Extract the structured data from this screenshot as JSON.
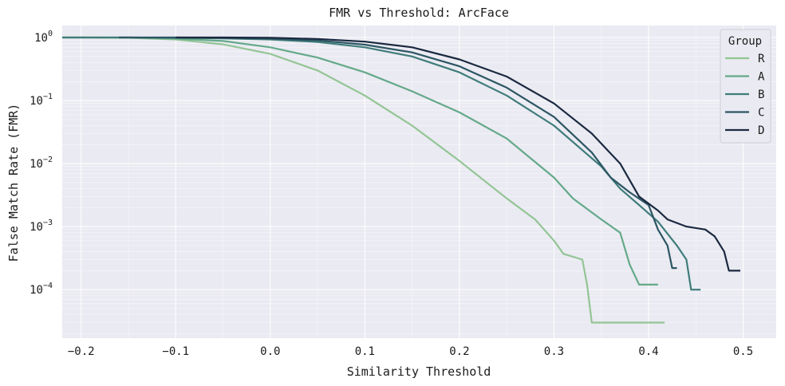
{
  "chart_data": {
    "type": "line",
    "title": "FMR vs Threshold: ArcFace",
    "xlabel": "Similarity Threshold",
    "ylabel": "False Match Rate (FMR)",
    "xlim": [
      -0.22,
      0.535
    ],
    "ylim": [
      1.7e-05,
      1.55
    ],
    "yscale": "log",
    "grid": true,
    "x_ticks": [
      -0.2,
      -0.1,
      0.0,
      0.1,
      0.2,
      0.3,
      0.4,
      0.5
    ],
    "x_tick_labels": [
      "−0.2",
      "−0.1",
      "0.0",
      "0.1",
      "0.2",
      "0.3",
      "0.4",
      "0.5"
    ],
    "y_ticks": [
      {
        "value": 1,
        "base": "10",
        "exp": "0"
      },
      {
        "value": 0.1,
        "base": "10",
        "exp": "−1"
      },
      {
        "value": 0.01,
        "base": "10",
        "exp": "−2"
      },
      {
        "value": 0.001,
        "base": "10",
        "exp": "−3"
      },
      {
        "value": 0.0001,
        "base": "10",
        "exp": "−4"
      }
    ],
    "legend": {
      "title": "Group",
      "placement": "top-right"
    },
    "series": [
      {
        "name": "R",
        "color": "#93c595",
        "points": [
          [
            -0.22,
            1
          ],
          [
            -0.2,
            1
          ],
          [
            -0.15,
            0.99
          ],
          [
            -0.1,
            0.93
          ],
          [
            -0.05,
            0.78
          ],
          [
            0,
            0.55
          ],
          [
            0.05,
            0.3
          ],
          [
            0.1,
            0.12
          ],
          [
            0.15,
            0.04
          ],
          [
            0.2,
            0.011
          ],
          [
            0.25,
            0.0028
          ],
          [
            0.28,
            0.0013
          ],
          [
            0.3,
            0.0006
          ],
          [
            0.31,
            0.00037
          ],
          [
            0.33,
            0.0003
          ],
          [
            0.335,
            0.00012
          ],
          [
            0.34,
            3e-05
          ],
          [
            0.417,
            3e-05
          ]
        ]
      },
      {
        "name": "A",
        "color": "#64a98a",
        "points": [
          [
            -0.22,
            1
          ],
          [
            -0.15,
            1
          ],
          [
            -0.1,
            0.96
          ],
          [
            -0.05,
            0.88
          ],
          [
            0,
            0.7
          ],
          [
            0.05,
            0.48
          ],
          [
            0.1,
            0.28
          ],
          [
            0.15,
            0.14
          ],
          [
            0.2,
            0.065
          ],
          [
            0.25,
            0.025
          ],
          [
            0.3,
            0.006
          ],
          [
            0.32,
            0.0028
          ],
          [
            0.35,
            0.0013
          ],
          [
            0.37,
            0.0008
          ],
          [
            0.38,
            0.00025
          ],
          [
            0.39,
            0.00012
          ],
          [
            0.41,
            0.00012
          ]
        ]
      },
      {
        "name": "B",
        "color": "#3f7c7a",
        "points": [
          [
            -0.22,
            1
          ],
          [
            -0.15,
            1
          ],
          [
            -0.1,
            0.99
          ],
          [
            -0.05,
            0.97
          ],
          [
            0,
            0.93
          ],
          [
            0.05,
            0.85
          ],
          [
            0.1,
            0.7
          ],
          [
            0.15,
            0.5
          ],
          [
            0.2,
            0.28
          ],
          [
            0.25,
            0.12
          ],
          [
            0.3,
            0.04
          ],
          [
            0.35,
            0.009
          ],
          [
            0.37,
            0.004
          ],
          [
            0.39,
            0.0022
          ],
          [
            0.41,
            0.0012
          ],
          [
            0.43,
            0.0005
          ],
          [
            0.44,
            0.0003
          ],
          [
            0.445,
            0.0001
          ],
          [
            0.455,
            0.0001
          ]
        ]
      },
      {
        "name": "C",
        "color": "#2c5663",
        "points": [
          [
            -0.16,
            1
          ],
          [
            -0.1,
            1
          ],
          [
            -0.05,
            0.99
          ],
          [
            0,
            0.96
          ],
          [
            0.05,
            0.9
          ],
          [
            0.1,
            0.77
          ],
          [
            0.15,
            0.58
          ],
          [
            0.2,
            0.35
          ],
          [
            0.25,
            0.16
          ],
          [
            0.3,
            0.055
          ],
          [
            0.34,
            0.015
          ],
          [
            0.36,
            0.006
          ],
          [
            0.38,
            0.0035
          ],
          [
            0.4,
            0.0022
          ],
          [
            0.41,
            0.0009
          ],
          [
            0.42,
            0.0005
          ],
          [
            0.425,
            0.00022
          ],
          [
            0.43,
            0.00022
          ]
        ]
      },
      {
        "name": "D",
        "color": "#1a2940",
        "points": [
          [
            -0.1,
            1
          ],
          [
            -0.05,
            1
          ],
          [
            0,
            0.99
          ],
          [
            0.05,
            0.95
          ],
          [
            0.1,
            0.86
          ],
          [
            0.15,
            0.7
          ],
          [
            0.2,
            0.45
          ],
          [
            0.25,
            0.24
          ],
          [
            0.3,
            0.09
          ],
          [
            0.34,
            0.03
          ],
          [
            0.37,
            0.01
          ],
          [
            0.39,
            0.003
          ],
          [
            0.41,
            0.0018
          ],
          [
            0.42,
            0.0013
          ],
          [
            0.44,
            0.001
          ],
          [
            0.46,
            0.0009
          ],
          [
            0.47,
            0.0007
          ],
          [
            0.48,
            0.0004
          ],
          [
            0.485,
            0.0002
          ],
          [
            0.497,
            0.0002
          ]
        ]
      }
    ]
  }
}
